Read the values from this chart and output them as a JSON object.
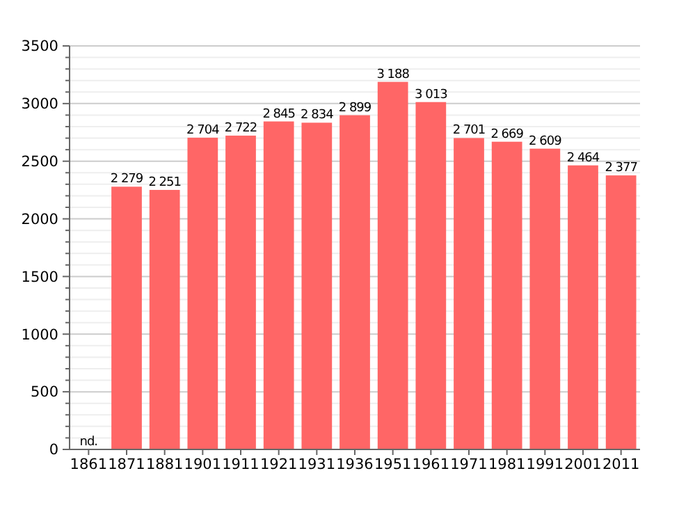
{
  "chart_data": {
    "type": "bar",
    "categories": [
      "1861",
      "1871",
      "1881",
      "1901",
      "1911",
      "1921",
      "1931",
      "1936",
      "1951",
      "1961",
      "1971",
      "1981",
      "1991",
      "2001",
      "2011"
    ],
    "values": [
      null,
      2279,
      2251,
      2704,
      2722,
      2845,
      2834,
      2899,
      3188,
      3013,
      2701,
      2669,
      2609,
      2464,
      2377
    ],
    "value_labels": [
      "nd.",
      "2 279",
      "2 251",
      "2 704",
      "2 722",
      "2 845",
      "2 834",
      "2 899",
      "3 188",
      "3 013",
      "2 701",
      "2 669",
      "2 609",
      "2 464",
      "2 377"
    ],
    "color": "#ff6666",
    "ylim": [
      0,
      3500
    ],
    "yticks": [
      0,
      {
        "value": 100,
        "label": null
      },
      {
        "value": 200,
        "label": null
      },
      {
        "value": 300,
        "label": null
      },
      {
        "value": 400,
        "label": null
      },
      500,
      {
        "value": 600,
        "label": null
      },
      {
        "value": 700,
        "label": null
      },
      {
        "value": 800,
        "label": null
      },
      {
        "value": 900,
        "label": null
      },
      1000,
      {
        "value": 1100,
        "label": null
      },
      {
        "value": 1200,
        "label": null
      },
      {
        "value": 1300,
        "label": null
      },
      {
        "value": 1400,
        "label": null
      },
      1500,
      {
        "value": 1600,
        "label": null
      },
      {
        "value": 1700,
        "label": null
      },
      {
        "value": 1800,
        "label": null
      },
      {
        "value": 1900,
        "label": null
      },
      2000,
      {
        "value": 2100,
        "label": null
      },
      {
        "value": 2200,
        "label": null
      },
      {
        "value": 2300,
        "label": null
      },
      {
        "value": 2400,
        "label": null
      },
      2500,
      {
        "value": 2600,
        "label": null
      },
      {
        "value": 2700,
        "label": null
      },
      {
        "value": 2800,
        "label": null
      },
      {
        "value": 2900,
        "label": null
      },
      3000,
      {
        "value": 3100,
        "label": null
      },
      {
        "value": 3200,
        "label": null
      },
      {
        "value": 3300,
        "label": null
      },
      {
        "value": 3400,
        "label": null
      },
      3500
    ],
    "grid": "y"
  }
}
